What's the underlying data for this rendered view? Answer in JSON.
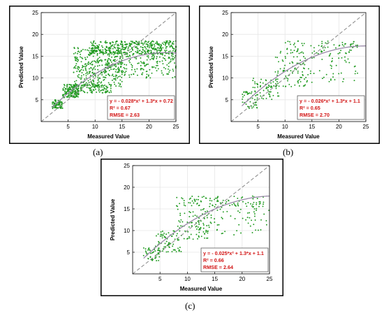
{
  "chart_data": [
    {
      "type": "scatter",
      "panel_label": "(a)",
      "xlabel": "Measured Value",
      "ylabel": "Predicted Value",
      "xlim": [
        0,
        25
      ],
      "ylim": [
        0,
        25
      ],
      "xticks": [
        5,
        10,
        15,
        20,
        25
      ],
      "yticks": [
        5,
        10,
        15,
        20,
        25
      ],
      "grid": true,
      "reference_line": "y = x",
      "fit": {
        "a": -0.028,
        "b": 1.3,
        "c": 0.72
      },
      "annotation": {
        "equation": "y = - 0.028*x² + 1.3*x + 0.72",
        "r2": "R² = 0.67",
        "rmse": "RMSE = 2.63",
        "placement": "bottom-right"
      },
      "marker_color": "#1f9a1f",
      "fit_color": "#9a8aa8",
      "annotation_color": "#d21414",
      "point_count": 1300,
      "clusters": [
        {
          "x": [
            2,
            4
          ],
          "y": [
            3,
            5
          ],
          "share": 0.06
        },
        {
          "x": [
            4,
            7
          ],
          "y": [
            5.5,
            8.5
          ],
          "share": 0.12
        },
        {
          "x": [
            6,
            13
          ],
          "y": [
            6.5,
            8.5
          ],
          "share": 0.08
        },
        {
          "x": [
            6,
            15
          ],
          "y": [
            8,
            17
          ],
          "share": 0.26
        },
        {
          "x": [
            9,
            25
          ],
          "y": [
            15.5,
            18.5
          ],
          "share": 0.3
        },
        {
          "x": [
            12,
            25
          ],
          "y": [
            10,
            16
          ],
          "share": 0.18
        }
      ]
    },
    {
      "type": "scatter",
      "panel_label": "(b)",
      "xlabel": "Measured Value",
      "ylabel": "Predicted Value",
      "xlim": [
        0,
        25
      ],
      "ylim": [
        0,
        25
      ],
      "xticks": [
        5,
        10,
        15,
        20,
        25
      ],
      "yticks": [
        5,
        10,
        15,
        20,
        25
      ],
      "grid": true,
      "reference_line": "y = x",
      "fit": {
        "a": -0.026,
        "b": 1.3,
        "c": 1.1
      },
      "annotation": {
        "equation": "y = - 0.026*x² + 1.3*x + 1.1",
        "r2": "R² = 0.65",
        "rmse": "RMSE = 2.70",
        "placement": "bottom-right"
      },
      "marker_color": "#1f9a1f",
      "fit_color": "#9a8aa8",
      "annotation_color": "#d21414",
      "point_count": 320,
      "clusters": [
        {
          "x": [
            2,
            5
          ],
          "y": [
            3,
            7
          ],
          "share": 0.14
        },
        {
          "x": [
            4,
            9
          ],
          "y": [
            5,
            10
          ],
          "share": 0.2
        },
        {
          "x": [
            8,
            14
          ],
          "y": [
            8,
            15
          ],
          "share": 0.22
        },
        {
          "x": [
            9,
            24
          ],
          "y": [
            15.5,
            18.5
          ],
          "share": 0.26
        },
        {
          "x": [
            12,
            24
          ],
          "y": [
            9,
            16
          ],
          "share": 0.18
        }
      ]
    },
    {
      "type": "scatter",
      "panel_label": "(c)",
      "xlabel": "Measured Value",
      "ylabel": "Predicted Value",
      "xlim": [
        0,
        25
      ],
      "ylim": [
        0,
        25
      ],
      "xticks": [
        5,
        10,
        15,
        20,
        25
      ],
      "yticks": [
        5,
        10,
        15,
        20,
        25
      ],
      "grid": true,
      "reference_line": "y = x",
      "fit": {
        "a": -0.025,
        "b": 1.3,
        "c": 1.1
      },
      "annotation": {
        "equation": "y = - 0.025*x² + 1.3*x + 1.1",
        "r2": "R² = 0.66",
        "rmse": "RMSE = 2.64",
        "placement": "bottom-right"
      },
      "marker_color": "#1f9a1f",
      "fit_color": "#9a8aa8",
      "annotation_color": "#d21414",
      "point_count": 360,
      "clusters": [
        {
          "x": [
            2,
            5
          ],
          "y": [
            3,
            6
          ],
          "share": 0.12
        },
        {
          "x": [
            4,
            9
          ],
          "y": [
            5,
            10
          ],
          "share": 0.2
        },
        {
          "x": [
            8,
            14
          ],
          "y": [
            8,
            15
          ],
          "share": 0.22
        },
        {
          "x": [
            8,
            24
          ],
          "y": [
            15.5,
            18
          ],
          "share": 0.26
        },
        {
          "x": [
            12,
            25
          ],
          "y": [
            9,
            16
          ],
          "share": 0.2
        }
      ]
    }
  ]
}
